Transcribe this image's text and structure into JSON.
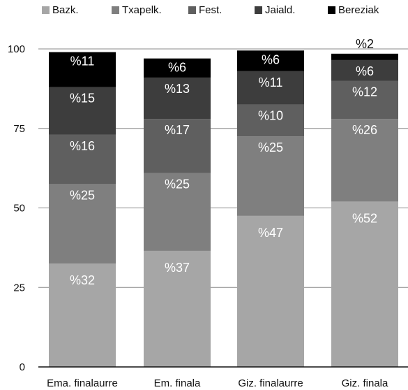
{
  "chart_data": {
    "type": "bar",
    "stacked": true,
    "categories": [
      "Ema. finalaurre",
      "Em. finala",
      "Giz. finalaurre",
      "Giz. finala"
    ],
    "series": [
      {
        "name": "Bazk.",
        "color": "#a6a6a6",
        "values": [
          32.5,
          36.5,
          47.5,
          52
        ],
        "labels": [
          "%32",
          "%37",
          "%47",
          "%52"
        ]
      },
      {
        "name": "Txapelk.",
        "color": "#7f7f7f",
        "values": [
          25,
          24.5,
          25,
          26
        ],
        "labels": [
          "%25",
          "%25",
          "%25",
          "%26"
        ]
      },
      {
        "name": "Fest.",
        "color": "#5f5f5f",
        "values": [
          15.5,
          17,
          10,
          12
        ],
        "labels": [
          "%16",
          "%17",
          "%10",
          "%12"
        ]
      },
      {
        "name": "Jaiald.",
        "color": "#3d3d3d",
        "values": [
          15,
          13,
          10.5,
          6.5
        ],
        "labels": [
          "%15",
          "%13",
          "%11",
          "%6"
        ]
      },
      {
        "name": "Bereziak",
        "color": "#000000",
        "values": [
          11,
          6,
          6.5,
          2
        ],
        "labels": [
          "%11",
          "%6",
          "%6",
          "%2"
        ]
      }
    ],
    "ylim": [
      0,
      100
    ],
    "yticks": [
      0,
      25,
      50,
      75,
      100
    ],
    "grid": true,
    "legend": "top"
  }
}
